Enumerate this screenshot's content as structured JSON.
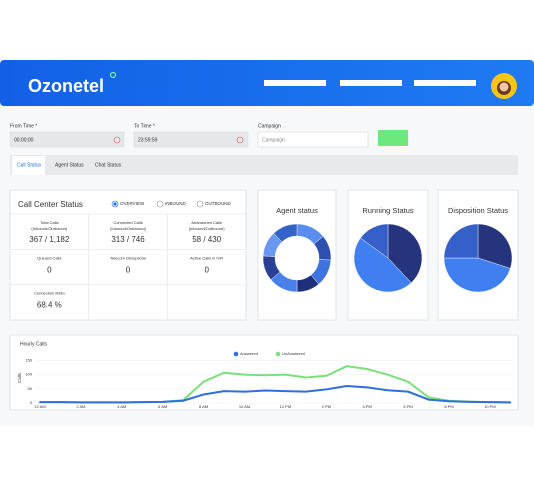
{
  "header": {
    "logo": "Ozonetel"
  },
  "filters": {
    "from_time": {
      "label": "From Time *",
      "value": "00:00:00"
    },
    "to_time": {
      "label": "To Time *",
      "value": "23:59:59"
    },
    "campaign": {
      "label": "Campaign",
      "placeholder": "Campaign"
    }
  },
  "tabs": [
    "Call Status",
    "Agent Status",
    "Chat Status"
  ],
  "call_center_status": {
    "title": "Call Center Status",
    "options": [
      "OVERVIEW",
      "INBOUND",
      "OUTBOUND"
    ],
    "selected": 0,
    "cells": [
      {
        "label": "Total Calls",
        "sublabel": "(Inbound/Outbound)",
        "value": "367 / 1,182"
      },
      {
        "label": "Connected Calls",
        "sublabel": "(Inbound/Outbound)",
        "value": "313 / 746"
      },
      {
        "label": "Abandoned Calls",
        "sublabel": "(Inbound/Outbound)",
        "value": "58 / 430"
      },
      {
        "label": "Queued Calls",
        "value": "0"
      },
      {
        "label": "Telecom Disruptions",
        "value": "0"
      },
      {
        "label": "Active Calls in IVR",
        "value": "0"
      },
      {
        "label": "Connection Ratio",
        "value": "68.4 %"
      }
    ]
  },
  "status_charts": [
    {
      "type": "donut",
      "title": "Agent status",
      "values": [
        14,
        12,
        13,
        11,
        14,
        12,
        12,
        12
      ],
      "colors": [
        "#5b8def",
        "#2d4fb0",
        "#3f74e0",
        "#1e2f7a",
        "#4a80ea",
        "#2a3f96",
        "#6a98f0",
        "#3463c8"
      ]
    },
    {
      "type": "pie",
      "title": "Running Status",
      "values": [
        38,
        47,
        15
      ],
      "colors": [
        "#26337d",
        "#3f7ff0",
        "#3560c9"
      ]
    },
    {
      "type": "pie",
      "title": "Disposition Status",
      "values": [
        30,
        45,
        25
      ],
      "colors": [
        "#26337d",
        "#3f7ff0",
        "#3560c9"
      ]
    }
  ],
  "hourly_calls": {
    "type": "line",
    "title": "Hourly Calls",
    "y_label": "Calls",
    "categories": [
      "12 AM",
      null,
      "2 AM",
      null,
      "4 AM",
      null,
      "6 AM",
      null,
      "8 AM",
      null,
      "10 AM",
      null,
      "12 PM",
      null,
      "2 PM",
      null,
      "4 PM",
      null,
      "6 PM",
      null,
      "8 PM",
      null,
      "10 PM",
      null
    ],
    "series": [
      {
        "name": "Answered",
        "color": "#2f6fe0",
        "values": [
          3,
          3,
          2,
          2,
          2,
          3,
          4,
          8,
          30,
          42,
          40,
          44,
          42,
          40,
          48,
          60,
          55,
          45,
          40,
          12,
          6,
          4,
          3,
          2
        ]
      },
      {
        "name": "UnAnswered",
        "color": "#7be07b",
        "values": [
          3,
          3,
          2,
          2,
          2,
          3,
          4,
          10,
          75,
          107,
          100,
          98,
          100,
          90,
          96,
          130,
          120,
          100,
          75,
          20,
          8,
          5,
          3,
          2
        ]
      }
    ],
    "ylim": [
      0,
      180
    ],
    "yticks": [
      0,
      50,
      100,
      150
    ]
  }
}
